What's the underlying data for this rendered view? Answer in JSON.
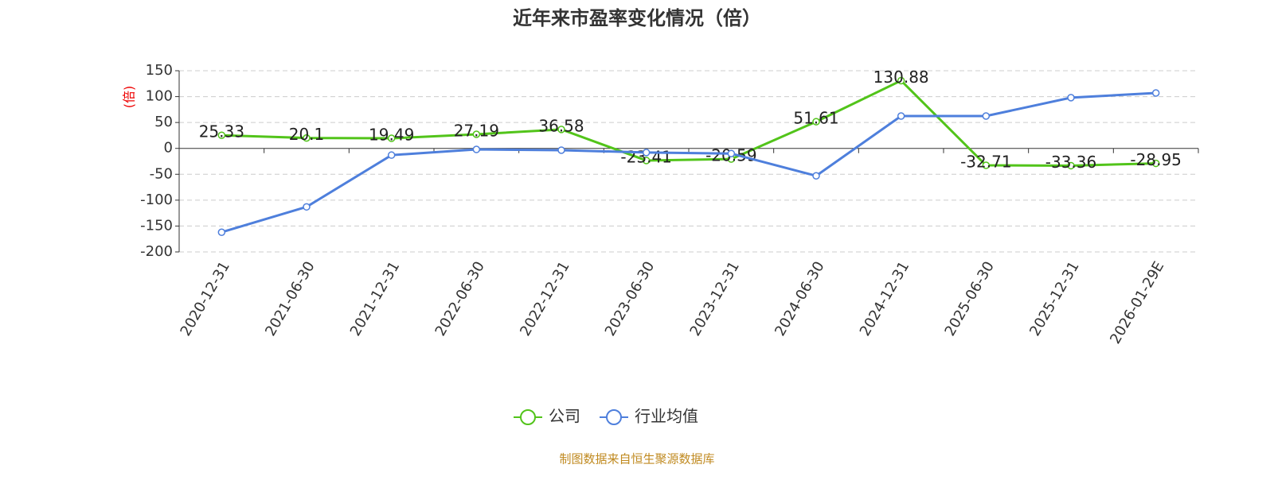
{
  "chart_data": {
    "type": "line",
    "title": "近年来市盈率变化情况（倍）",
    "y_label": "(倍)",
    "source": "制图数据来自恒生聚源数据库",
    "categories": [
      "2020-12-31",
      "2021-06-30",
      "2021-12-31",
      "2022-06-30",
      "2022-12-31",
      "2023-06-30",
      "2023-12-31",
      "2024-06-30",
      "2024-12-31",
      "2025-06-30",
      "2025-12-31",
      "2026-01-29E"
    ],
    "series": [
      {
        "name": "公司",
        "color": "#52c41a",
        "values": [
          25.33,
          20.1,
          19.49,
          27.19,
          36.58,
          -23.41,
          -20.59,
          51.61,
          130.88,
          -32.71,
          -33.36,
          -28.95
        ]
      },
      {
        "name": "行业均值",
        "color": "#4e7fdc",
        "values": [
          -162,
          -113,
          -13,
          -2,
          -3.5,
          -8,
          -10,
          -53,
          62.5,
          62.5,
          98,
          107
        ]
      }
    ],
    "ylim": [
      -200,
      150
    ],
    "yticks": [
      -200,
      -150,
      -100,
      -50,
      0,
      50,
      100,
      150
    ],
    "grid": true
  }
}
